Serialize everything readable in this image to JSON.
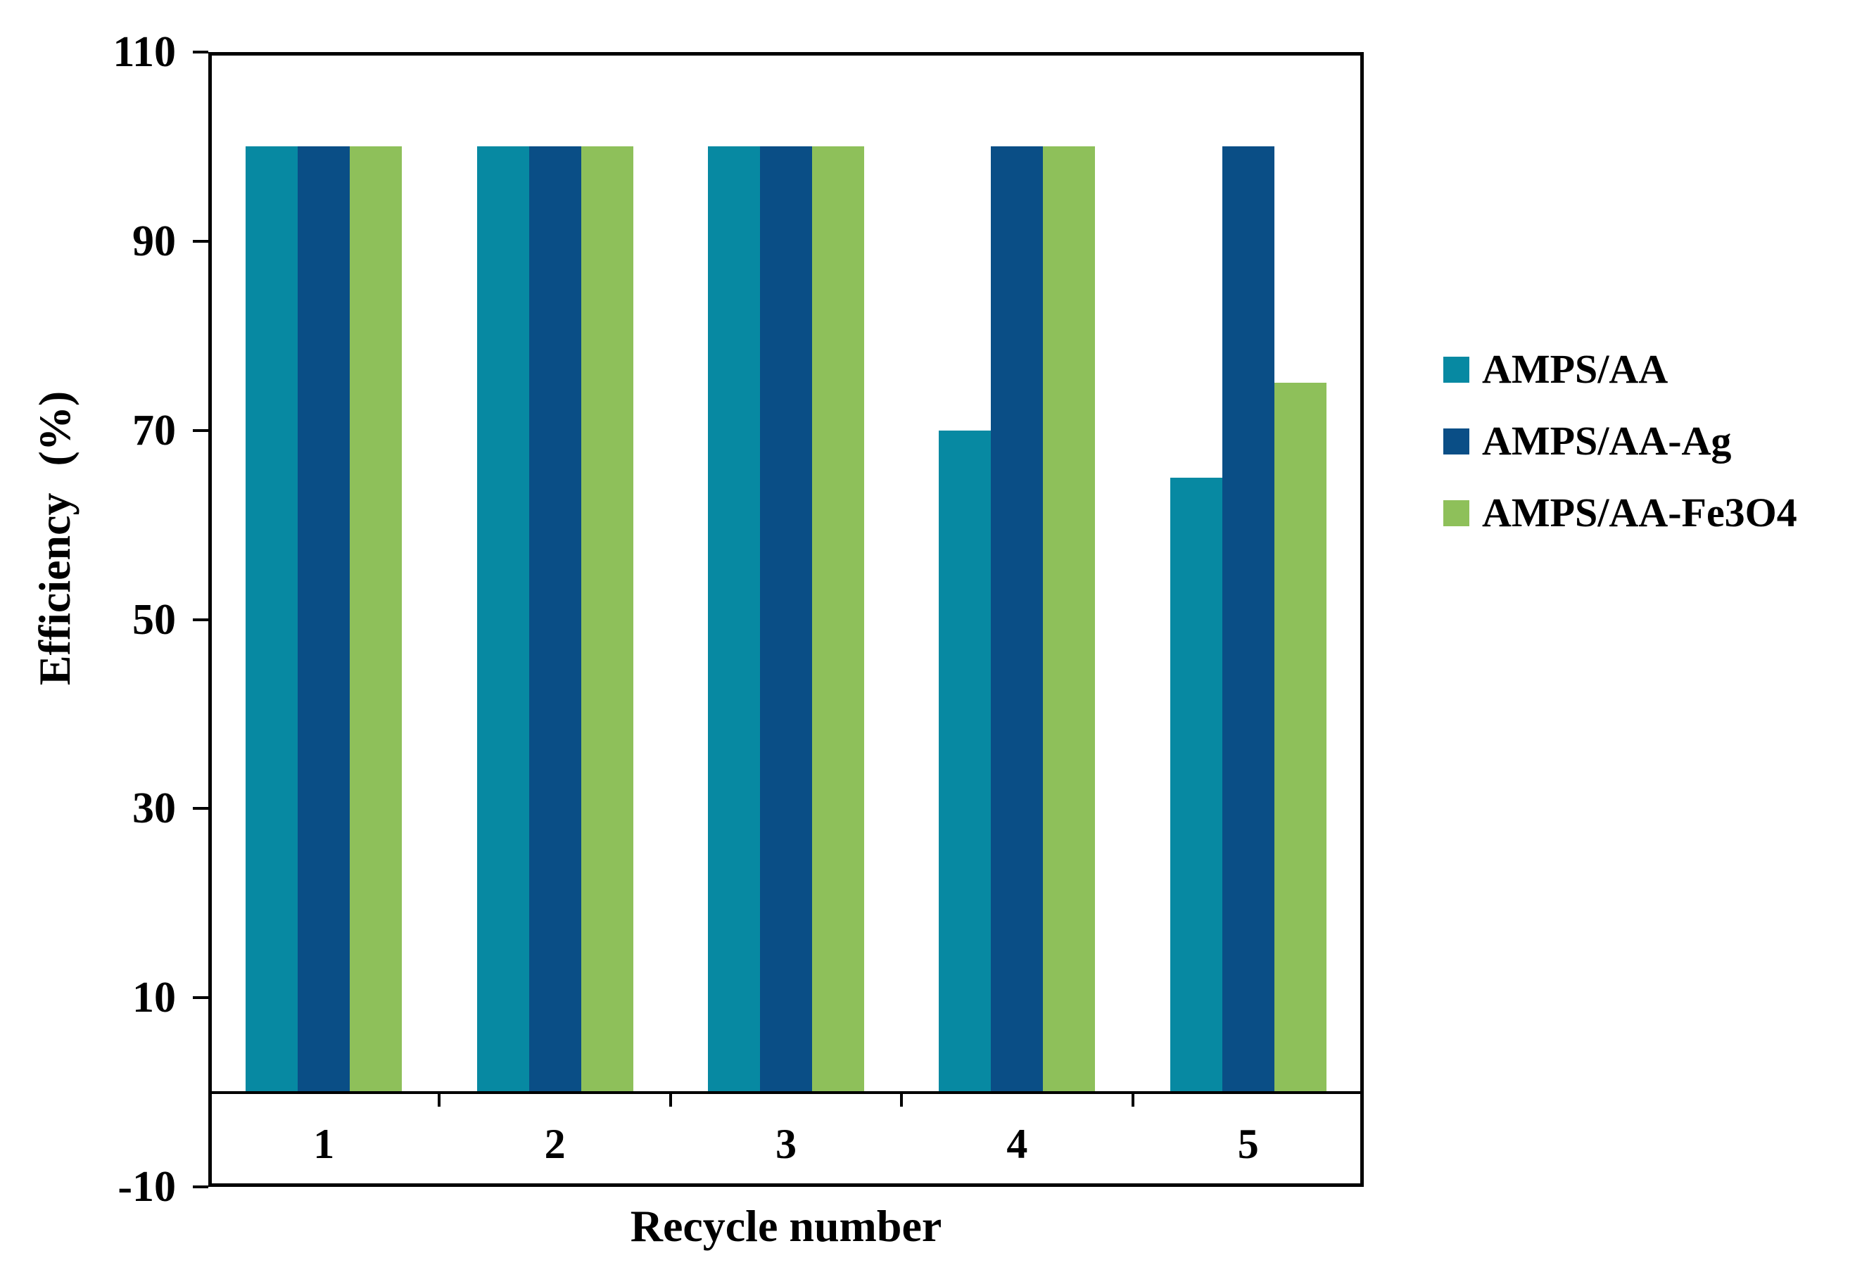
{
  "chart_data": {
    "type": "bar",
    "title": "",
    "xlabel": "Recycle number",
    "ylabel": "Efficiency (%)",
    "categories": [
      "1",
      "2",
      "3",
      "4",
      "5"
    ],
    "series": [
      {
        "name": "AMPS/AA",
        "color": "#0789A2",
        "values": [
          100,
          100,
          100,
          70,
          65
        ]
      },
      {
        "name": "AMPS/AA-Ag",
        "color": "#0A4E86",
        "values": [
          100,
          100,
          100,
          100,
          100
        ]
      },
      {
        "name": "AMPS/AA-Fe3O4",
        "color": "#8EC05A",
        "values": [
          100,
          100,
          100,
          100,
          75
        ]
      }
    ],
    "ylim": [
      -10,
      110
    ],
    "yticks": [
      110,
      90,
      70,
      50,
      30,
      10,
      -10
    ],
    "grid": false,
    "legend_position": "right",
    "frame_color": "#000000",
    "background_color": "#ffffff"
  }
}
